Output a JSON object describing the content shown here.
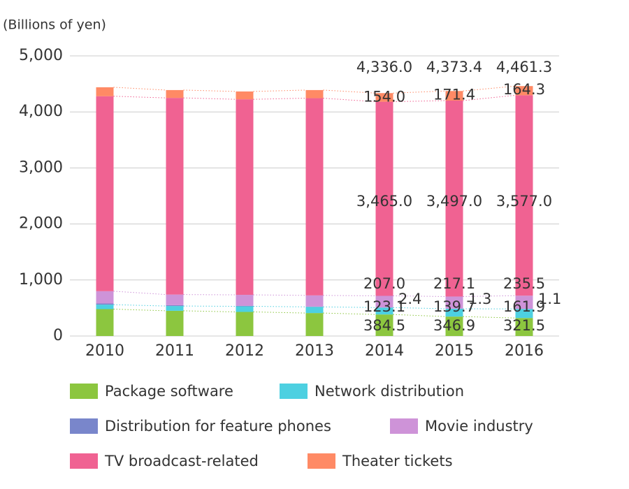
{
  "chart_data": {
    "type": "stacked-bar",
    "unit_label": "(Billions of yen)",
    "categories": [
      "2010",
      "2011",
      "2012",
      "2013",
      "2014",
      "2015",
      "2016"
    ],
    "series": [
      {
        "name": "Package software",
        "color": "#8cc63f",
        "values": [
          480,
          450,
          430,
          410,
          384.5,
          346.9,
          321.5
        ],
        "value_labels": [
          null,
          null,
          null,
          null,
          "384.5",
          "346.9",
          "321.5"
        ]
      },
      {
        "name": "Network distribution",
        "color": "#4dd0e1",
        "values": [
          80,
          85,
          100,
          110,
          123.1,
          139.7,
          161.9
        ],
        "value_labels": [
          null,
          null,
          null,
          null,
          "123.1",
          "139.7",
          "161.9"
        ]
      },
      {
        "name": "Distribution for feature phones",
        "color": "#7986cb",
        "values": [
          20,
          15,
          10,
          5,
          2.4,
          1.3,
          1.1
        ],
        "value_labels": [
          null,
          null,
          null,
          null,
          "2.4",
          "1.3",
          "1.1"
        ]
      },
      {
        "name": "Movie industry",
        "color": "#ce93d8",
        "values": [
          220,
          190,
          195,
          200,
          207.0,
          217.1,
          235.5
        ],
        "value_labels": [
          null,
          null,
          null,
          null,
          "207.0",
          "217.1",
          "235.5"
        ]
      },
      {
        "name": "TV broadcast-related",
        "color": "#f06292",
        "values": [
          3480,
          3510,
          3490,
          3520,
          3465.0,
          3497.0,
          3577.0
        ],
        "value_labels": [
          null,
          null,
          null,
          null,
          "3,465.0",
          "3,497.0",
          "3,577.0"
        ]
      },
      {
        "name": "Theater tickets",
        "color": "#ff8a65",
        "values": [
          160,
          140,
          140,
          145,
          154.0,
          171.4,
          164.3
        ],
        "value_labels": [
          null,
          null,
          null,
          null,
          "154.0",
          "171.4",
          "164.3"
        ]
      }
    ],
    "totals": [
      null,
      null,
      null,
      null,
      4336.0,
      4373.4,
      4461.3
    ],
    "total_labels": [
      null,
      null,
      null,
      null,
      "4,336.0",
      "4,373.4",
      "4,461.3"
    ],
    "ylim": [
      0,
      5000
    ],
    "yticks": [
      0,
      {
        "value": 1000,
        "label": "1,000"
      },
      {
        "value": 2000,
        "label": "2,000"
      },
      {
        "value": 3000,
        "label": "3,000"
      },
      {
        "value": 4000,
        "label": "4,000"
      },
      {
        "value": 5000,
        "label": "5,000"
      }
    ],
    "grid": true
  }
}
